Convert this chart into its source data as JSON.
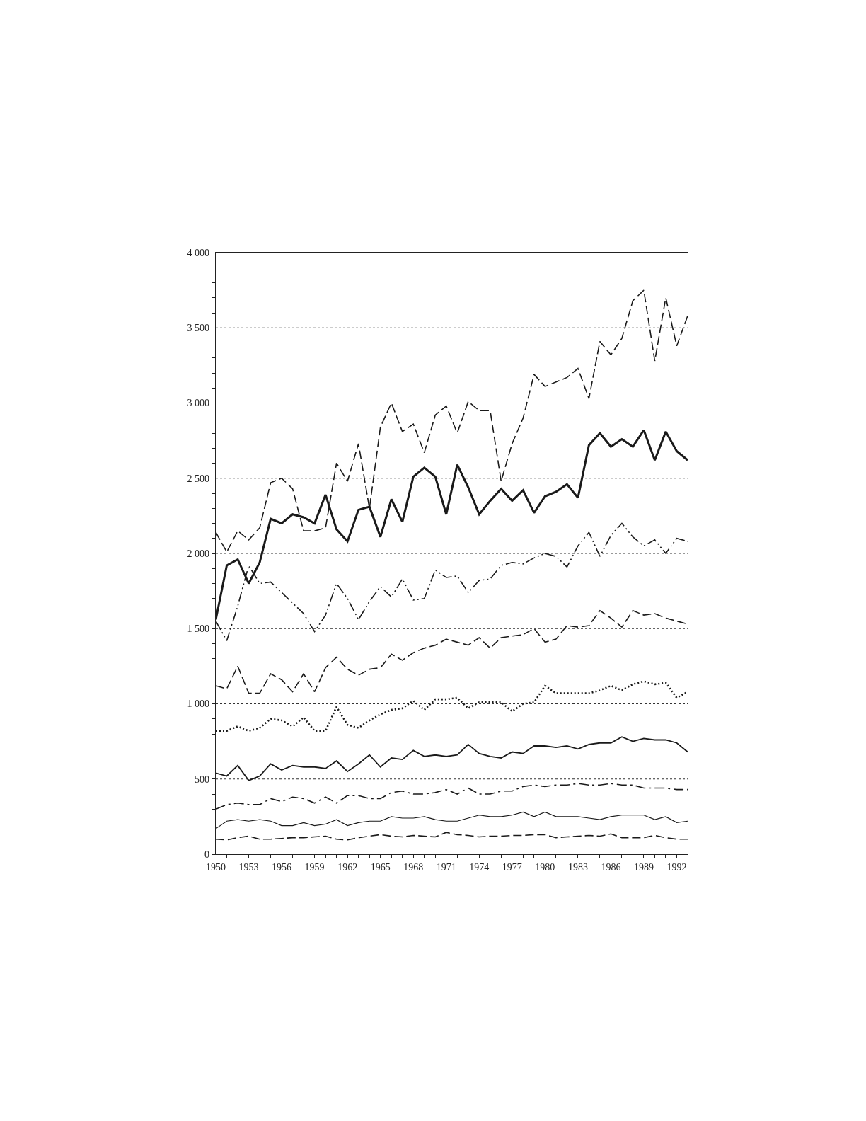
{
  "chart_data": {
    "type": "line",
    "x": [
      1950,
      1951,
      1952,
      1953,
      1954,
      1955,
      1956,
      1957,
      1958,
      1959,
      1960,
      1961,
      1962,
      1963,
      1964,
      1965,
      1966,
      1967,
      1968,
      1969,
      1970,
      1971,
      1972,
      1973,
      1974,
      1975,
      1976,
      1977,
      1978,
      1979,
      1980,
      1981,
      1982,
      1983,
      1984,
      1985,
      1986,
      1987,
      1988,
      1989,
      1990,
      1991,
      1992,
      1993
    ],
    "series": [
      {
        "color": "#1a1a1a",
        "line_style": "dashed",
        "values": [
          2140,
          2010,
          2150,
          2090,
          2170,
          2470,
          2500,
          2430,
          2150,
          2150,
          2170,
          2600,
          2480,
          2730,
          2300,
          2840,
          3000,
          2810,
          2860,
          2670,
          2920,
          2980,
          2800,
          3010,
          2950,
          2950,
          2480,
          2730,
          2900,
          3190,
          3110,
          3140,
          3170,
          3230,
          3030,
          3410,
          3320,
          3430,
          3680,
          3750,
          3280,
          3700,
          3380,
          3580
        ]
      },
      {
        "color": "#1a1a1a",
        "line_style": "solid",
        "values": [
          1560,
          1920,
          1960,
          1800,
          1940,
          2230,
          2200,
          2260,
          2240,
          2200,
          2390,
          2160,
          2080,
          2290,
          2310,
          2110,
          2360,
          2210,
          2510,
          2570,
          2510,
          2260,
          2590,
          2440,
          2260,
          2350,
          2430,
          2350,
          2420,
          2270,
          2380,
          2410,
          2460,
          2370,
          2720,
          2800,
          2710,
          2760,
          2710,
          2820,
          2620,
          2810,
          2680,
          2620
        ]
      },
      {
        "color": "#1a1a1a",
        "line_style": "dashdotdot",
        "values": [
          1550,
          1420,
          1650,
          1920,
          1800,
          1810,
          1740,
          1670,
          1600,
          1480,
          1590,
          1800,
          1700,
          1560,
          1680,
          1780,
          1710,
          1830,
          1690,
          1700,
          1890,
          1840,
          1850,
          1740,
          1820,
          1830,
          1920,
          1940,
          1930,
          1970,
          2000,
          1980,
          1910,
          2050,
          2140,
          1980,
          2120,
          2200,
          2110,
          2050,
          2090,
          2000,
          2100,
          2080
        ]
      },
      {
        "color": "#1a1a1a",
        "line_style": "dashed",
        "values": [
          1120,
          1100,
          1250,
          1070,
          1070,
          1200,
          1160,
          1080,
          1200,
          1080,
          1240,
          1310,
          1230,
          1190,
          1230,
          1240,
          1330,
          1290,
          1340,
          1370,
          1390,
          1430,
          1410,
          1390,
          1440,
          1370,
          1440,
          1450,
          1460,
          1500,
          1410,
          1430,
          1520,
          1510,
          1520,
          1620,
          1570,
          1510,
          1620,
          1590,
          1600,
          1570,
          1550,
          1530
        ]
      },
      {
        "color": "#1a1a1a",
        "line_style": "dotted",
        "values": [
          820,
          820,
          850,
          820,
          840,
          900,
          890,
          850,
          910,
          820,
          820,
          980,
          860,
          840,
          890,
          930,
          960,
          970,
          1020,
          960,
          1030,
          1030,
          1040,
          970,
          1010,
          1010,
          1010,
          950,
          1000,
          1010,
          1120,
          1070,
          1070,
          1070,
          1070,
          1090,
          1120,
          1090,
          1130,
          1150,
          1130,
          1140,
          1040,
          1080
        ]
      },
      {
        "color": "#1a1a1a",
        "line_style": "solid",
        "values": [
          540,
          520,
          590,
          490,
          520,
          600,
          560,
          590,
          580,
          580,
          570,
          620,
          550,
          600,
          660,
          580,
          640,
          630,
          690,
          650,
          660,
          650,
          660,
          730,
          670,
          650,
          640,
          680,
          670,
          720,
          720,
          710,
          720,
          700,
          730,
          740,
          740,
          780,
          750,
          770,
          760,
          760,
          740,
          680
        ]
      },
      {
        "color": "#1a1a1a",
        "line_style": "dashdot",
        "values": [
          300,
          330,
          340,
          330,
          330,
          370,
          350,
          380,
          370,
          340,
          380,
          340,
          390,
          390,
          370,
          370,
          410,
          420,
          400,
          400,
          410,
          430,
          400,
          440,
          400,
          400,
          420,
          420,
          450,
          460,
          450,
          460,
          460,
          470,
          460,
          460,
          470,
          460,
          460,
          440,
          440,
          440,
          430,
          430
        ]
      },
      {
        "color": "#1a1a1a",
        "line_style": "solid",
        "values": [
          170,
          220,
          230,
          220,
          230,
          220,
          190,
          190,
          210,
          190,
          200,
          230,
          190,
          210,
          220,
          220,
          250,
          240,
          240,
          250,
          230,
          220,
          220,
          240,
          260,
          250,
          250,
          260,
          280,
          250,
          280,
          250,
          250,
          250,
          240,
          230,
          250,
          260,
          260,
          260,
          230,
          250,
          210,
          220
        ]
      },
      {
        "color": "#1a1a1a",
        "line_style": "dashed",
        "values": [
          100,
          95,
          110,
          120,
          100,
          100,
          105,
          110,
          110,
          115,
          120,
          100,
          95,
          110,
          120,
          130,
          120,
          115,
          125,
          120,
          115,
          145,
          130,
          125,
          115,
          120,
          120,
          125,
          125,
          130,
          130,
          110,
          115,
          120,
          125,
          120,
          135,
          110,
          110,
          110,
          125,
          110,
          100,
          100
        ]
      }
    ],
    "xlim": [
      1950,
      1993
    ],
    "xticks": [
      1950,
      {
        "value": 1951,
        "label": null
      },
      {
        "value": 1952,
        "label": null
      },
      1953,
      {
        "value": 1954,
        "label": null
      },
      {
        "value": 1955,
        "label": null
      },
      1956,
      {
        "value": 1957,
        "label": null
      },
      {
        "value": 1958,
        "label": null
      },
      1959,
      {
        "value": 1960,
        "label": null
      },
      {
        "value": 1961,
        "label": null
      },
      1962,
      {
        "value": 1963,
        "label": null
      },
      {
        "value": 1964,
        "label": null
      },
      1965,
      {
        "value": 1966,
        "label": null
      },
      {
        "value": 1967,
        "label": null
      },
      1968,
      {
        "value": 1969,
        "label": null
      },
      {
        "value": 1970,
        "label": null
      },
      1971,
      {
        "value": 1972,
        "label": null
      },
      {
        "value": 1973,
        "label": null
      },
      1974,
      {
        "value": 1975,
        "label": null
      },
      {
        "value": 1976,
        "label": null
      },
      1977,
      {
        "value": 1978,
        "label": null
      },
      {
        "value": 1979,
        "label": null
      },
      1980,
      {
        "value": 1981,
        "label": null
      },
      {
        "value": 1982,
        "label": null
      },
      1983,
      {
        "value": 1984,
        "label": null
      },
      {
        "value": 1985,
        "label": null
      },
      1986,
      {
        "value": 1987,
        "label": null
      },
      {
        "value": 1988,
        "label": null
      },
      1989,
      {
        "value": 1990,
        "label": null
      },
      {
        "value": 1991,
        "label": null
      },
      1992,
      {
        "value": 1993,
        "label": null
      }
    ],
    "ylim": [
      0,
      4000
    ],
    "yticks": [
      0,
      {
        "value": 100,
        "label": null
      },
      {
        "value": 200,
        "label": null
      },
      {
        "value": 300,
        "label": null
      },
      {
        "value": 400,
        "label": null
      },
      500,
      {
        "value": 600,
        "label": null
      },
      {
        "value": 700,
        "label": null
      },
      {
        "value": 800,
        "label": null
      },
      {
        "value": 900,
        "label": null
      },
      {
        "value": 1000,
        "label": "1 000"
      },
      {
        "value": 1100,
        "label": null
      },
      {
        "value": 1200,
        "label": null
      },
      {
        "value": 1300,
        "label": null
      },
      {
        "value": 1400,
        "label": null
      },
      {
        "value": 1500,
        "label": "1 500"
      },
      {
        "value": 1600,
        "label": null
      },
      {
        "value": 1700,
        "label": null
      },
      {
        "value": 1800,
        "label": null
      },
      {
        "value": 1900,
        "label": null
      },
      {
        "value": 2000,
        "label": "2 000"
      },
      {
        "value": 2100,
        "label": null
      },
      {
        "value": 2200,
        "label": null
      },
      {
        "value": 2300,
        "label": null
      },
      {
        "value": 2400,
        "label": null
      },
      {
        "value": 2500,
        "label": "2 500"
      },
      {
        "value": 2600,
        "label": null
      },
      {
        "value": 2700,
        "label": null
      },
      {
        "value": 2800,
        "label": null
      },
      {
        "value": 2900,
        "label": null
      },
      {
        "value": 3000,
        "label": "3 000"
      },
      {
        "value": 3100,
        "label": null
      },
      {
        "value": 3200,
        "label": null
      },
      {
        "value": 3300,
        "label": null
      },
      {
        "value": 3400,
        "label": null
      },
      {
        "value": 3500,
        "label": "3 500"
      },
      {
        "value": 3600,
        "label": null
      },
      {
        "value": 3700,
        "label": null
      },
      {
        "value": 3800,
        "label": null
      },
      {
        "value": 3900,
        "label": null
      },
      {
        "value": 4000,
        "label": "4 000"
      }
    ],
    "grid": "y",
    "marker": "none"
  }
}
